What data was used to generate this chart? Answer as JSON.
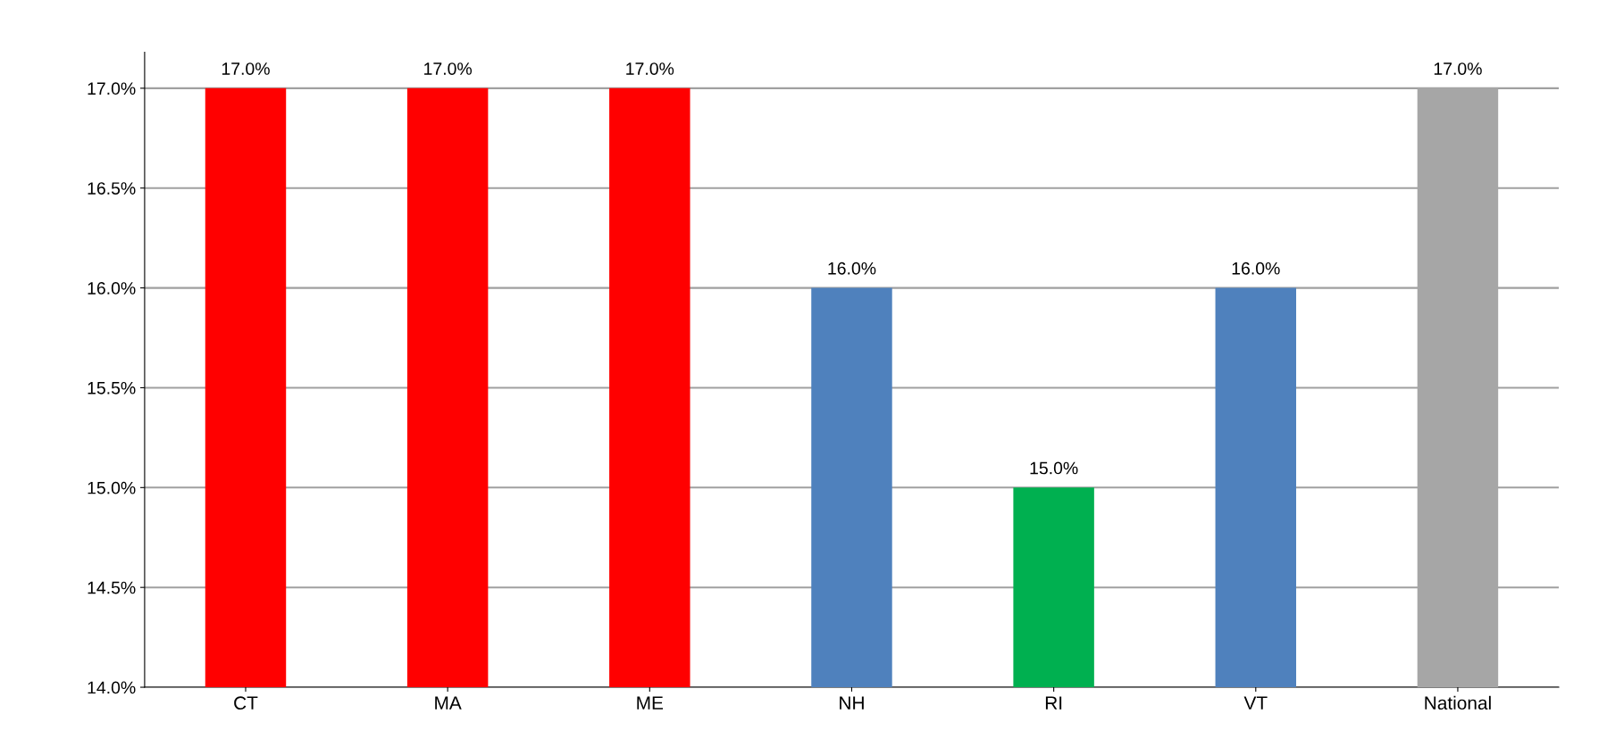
{
  "chart_data": {
    "type": "bar",
    "categories": [
      "CT",
      "MA",
      "ME",
      "NH",
      "RI",
      "VT",
      "National"
    ],
    "values": [
      17.0,
      17.0,
      17.0,
      16.0,
      15.0,
      16.0,
      17.0
    ],
    "colors": [
      "#ff0000",
      "#ff0000",
      "#ff0000",
      "#4f81bd",
      "#00b050",
      "#4f81bd",
      "#a6a6a6"
    ],
    "value_labels": [
      "17.0%",
      "17.0%",
      "17.0%",
      "16.0%",
      "15.0%",
      "16.0%",
      "17.0%"
    ],
    "ylim": [
      14.0,
      17.0
    ],
    "yticks": [
      {
        "value": 14.0,
        "label": "14.0%"
      },
      {
        "value": 14.5,
        "label": "14.5%"
      },
      {
        "value": 15.0,
        "label": "15.0%"
      },
      {
        "value": 15.5,
        "label": "15.5%"
      },
      {
        "value": 16.0,
        "label": "16.0%"
      },
      {
        "value": 16.5,
        "label": "16.5%"
      },
      {
        "value": 17.0,
        "label": "17.0%"
      }
    ],
    "grid": "y",
    "legend": false
  }
}
